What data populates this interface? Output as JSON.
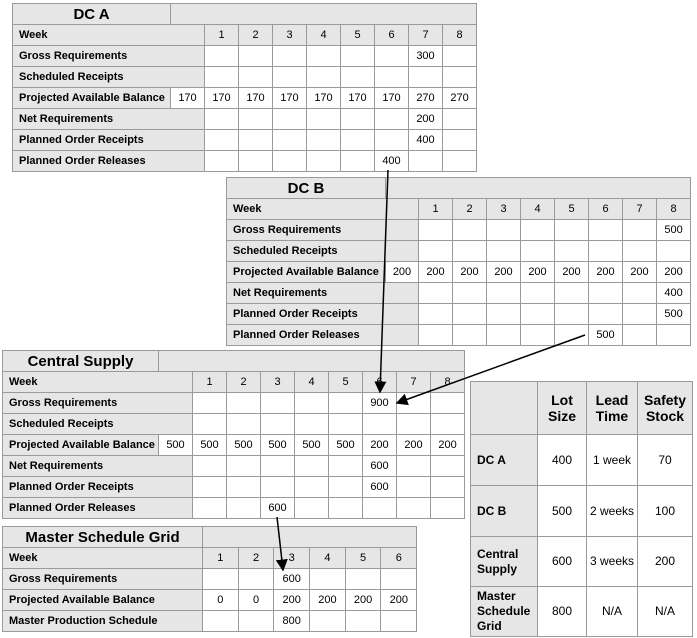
{
  "mrp_tables": [
    {
      "id": "dc-a",
      "title": "DC A",
      "weeks": [
        "1",
        "2",
        "3",
        "4",
        "5",
        "6",
        "7",
        "8"
      ],
      "rows": [
        {
          "label": "Week"
        },
        {
          "label": "Gross Requirements",
          "values": [
            "",
            "",
            "",
            "",
            "",
            "",
            "300",
            ""
          ]
        },
        {
          "label": "Scheduled Receipts",
          "values": [
            "",
            "",
            "",
            "",
            "",
            "",
            "",
            ""
          ]
        },
        {
          "label": "Projected Available Balance",
          "initial": "170",
          "values": [
            "170",
            "170",
            "170",
            "170",
            "170",
            "170",
            "270",
            "270"
          ]
        },
        {
          "label": "Net Requirements",
          "values": [
            "",
            "",
            "",
            "",
            "",
            "",
            "200",
            ""
          ]
        },
        {
          "label": "Planned Order Receipts",
          "values": [
            "",
            "",
            "",
            "",
            "",
            "",
            "400",
            ""
          ]
        },
        {
          "label": "Planned Order Releases",
          "values": [
            "",
            "",
            "",
            "",
            "",
            "400",
            "",
            ""
          ]
        }
      ]
    },
    {
      "id": "dc-b",
      "title": "DC B",
      "weeks": [
        "1",
        "2",
        "3",
        "4",
        "5",
        "6",
        "7",
        "8"
      ],
      "rows": [
        {
          "label": "Week"
        },
        {
          "label": "Gross Requirements",
          "values": [
            "",
            "",
            "",
            "",
            "",
            "",
            "",
            "500"
          ]
        },
        {
          "label": "Scheduled Receipts",
          "values": [
            "",
            "",
            "",
            "",
            "",
            "",
            "",
            ""
          ]
        },
        {
          "label": "Projected Available Balance",
          "initial": "200",
          "values": [
            "200",
            "200",
            "200",
            "200",
            "200",
            "200",
            "200",
            "200"
          ]
        },
        {
          "label": "Net Requirements",
          "values": [
            "",
            "",
            "",
            "",
            "",
            "",
            "",
            "400"
          ]
        },
        {
          "label": "Planned Order Receipts",
          "values": [
            "",
            "",
            "",
            "",
            "",
            "",
            "",
            "500"
          ]
        },
        {
          "label": "Planned Order Releases",
          "values": [
            "",
            "",
            "",
            "",
            "",
            "500",
            "",
            ""
          ]
        }
      ]
    },
    {
      "id": "central-supply",
      "title": "Central Supply",
      "weeks": [
        "1",
        "2",
        "3",
        "4",
        "5",
        "6",
        "7",
        "8"
      ],
      "rows": [
        {
          "label": "Week"
        },
        {
          "label": "Gross Requirements",
          "values": [
            "",
            "",
            "",
            "",
            "",
            "900",
            "",
            ""
          ]
        },
        {
          "label": "Scheduled Receipts",
          "values": [
            "",
            "",
            "",
            "",
            "",
            "",
            "",
            ""
          ]
        },
        {
          "label": "Projected Available Balance",
          "initial": "500",
          "values": [
            "500",
            "500",
            "500",
            "500",
            "500",
            "200",
            "200",
            "200"
          ]
        },
        {
          "label": "Net Requirements",
          "values": [
            "",
            "",
            "",
            "",
            "",
            "600",
            "",
            ""
          ]
        },
        {
          "label": "Planned Order Receipts",
          "values": [
            "",
            "",
            "",
            "",
            "",
            "600",
            "",
            ""
          ]
        },
        {
          "label": "Planned Order Releases",
          "values": [
            "",
            "",
            "600",
            "",
            "",
            "",
            "",
            ""
          ]
        }
      ]
    },
    {
      "id": "master-schedule",
      "title": "Master Schedule Grid",
      "weeks": [
        "1",
        "2",
        "3",
        "4",
        "5",
        "6"
      ],
      "rows": [
        {
          "label": "Week"
        },
        {
          "label": "Gross Requirements",
          "values": [
            "",
            "",
            "600",
            "",
            "",
            ""
          ]
        },
        {
          "label": "Projected Available Balance",
          "values": [
            "0",
            "0",
            "200",
            "200",
            "200",
            "200"
          ]
        },
        {
          "label": "Master Production Schedule",
          "values": [
            "",
            "",
            "800",
            "",
            "",
            ""
          ]
        }
      ]
    }
  ],
  "parameters": {
    "headers": [
      "",
      "Lot Size",
      "Lead Time",
      "Safety Stock"
    ],
    "rows": [
      {
        "name": "DC A",
        "lot_size": "400",
        "lead_time": "1 week",
        "safety_stock": "70"
      },
      {
        "name": "DC B",
        "lot_size": "500",
        "lead_time": "2 weeks",
        "safety_stock": "100"
      },
      {
        "name": "Central Supply",
        "lot_size": "600",
        "lead_time": "3 weeks",
        "safety_stock": "200"
      },
      {
        "name": "Master Schedule Grid",
        "lot_size": "800",
        "lead_time": "N/A",
        "safety_stock": "N/A"
      }
    ]
  }
}
